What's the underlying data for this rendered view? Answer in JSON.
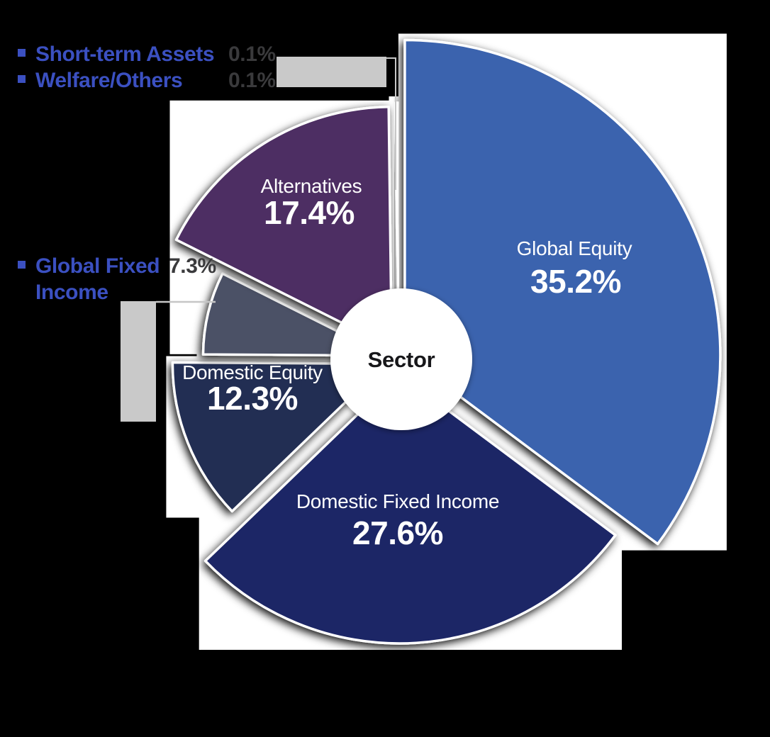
{
  "chart_data": {
    "type": "pie",
    "variant": "exploded-variable-radius-donut",
    "center_label": "Sector",
    "unit": "%",
    "direction": "clockwise",
    "start_angle_deg": 0,
    "categories": [
      "Global Equity",
      "Domestic Fixed Income",
      "Domestic Equity",
      "Global Fixed Income",
      "Alternatives",
      "Short-term Assets",
      "Welfare/Others"
    ],
    "values": [
      35.2,
      27.6,
      12.3,
      7.3,
      17.4,
      0.1,
      0.1
    ],
    "display_values": [
      "35.2%",
      "27.6%",
      "12.3%",
      "7.3%",
      "17.4%",
      "0.1%",
      "0.1%"
    ],
    "colors": [
      "#3a63ae",
      "#1e2566",
      "#242e52",
      "#4b5166",
      "#4d2f63",
      "#9aa0b8",
      "#9aa0b8"
    ],
    "legend_position": "left",
    "legend_callouts": [
      {
        "label": "Short-term Assets",
        "value": "0.1%"
      },
      {
        "label": "Welfare/Others",
        "value": "0.1%"
      },
      {
        "label": "Global Fixed Income",
        "value": "7.3%"
      }
    ]
  },
  "styles": {
    "background": "#000000",
    "slice_border": "#ffffff",
    "slice_backdrop": "#ffffff",
    "center_circle_fill": "#ffffff",
    "center_text_color": "#17171a",
    "slice_label_color": "#ffffff",
    "legend_label_color": "#3b50c1",
    "legend_value_color": "#3a3a3c",
    "callout_box_color": "#c9c9c9",
    "leader_line_color": "#c6c6c6"
  }
}
